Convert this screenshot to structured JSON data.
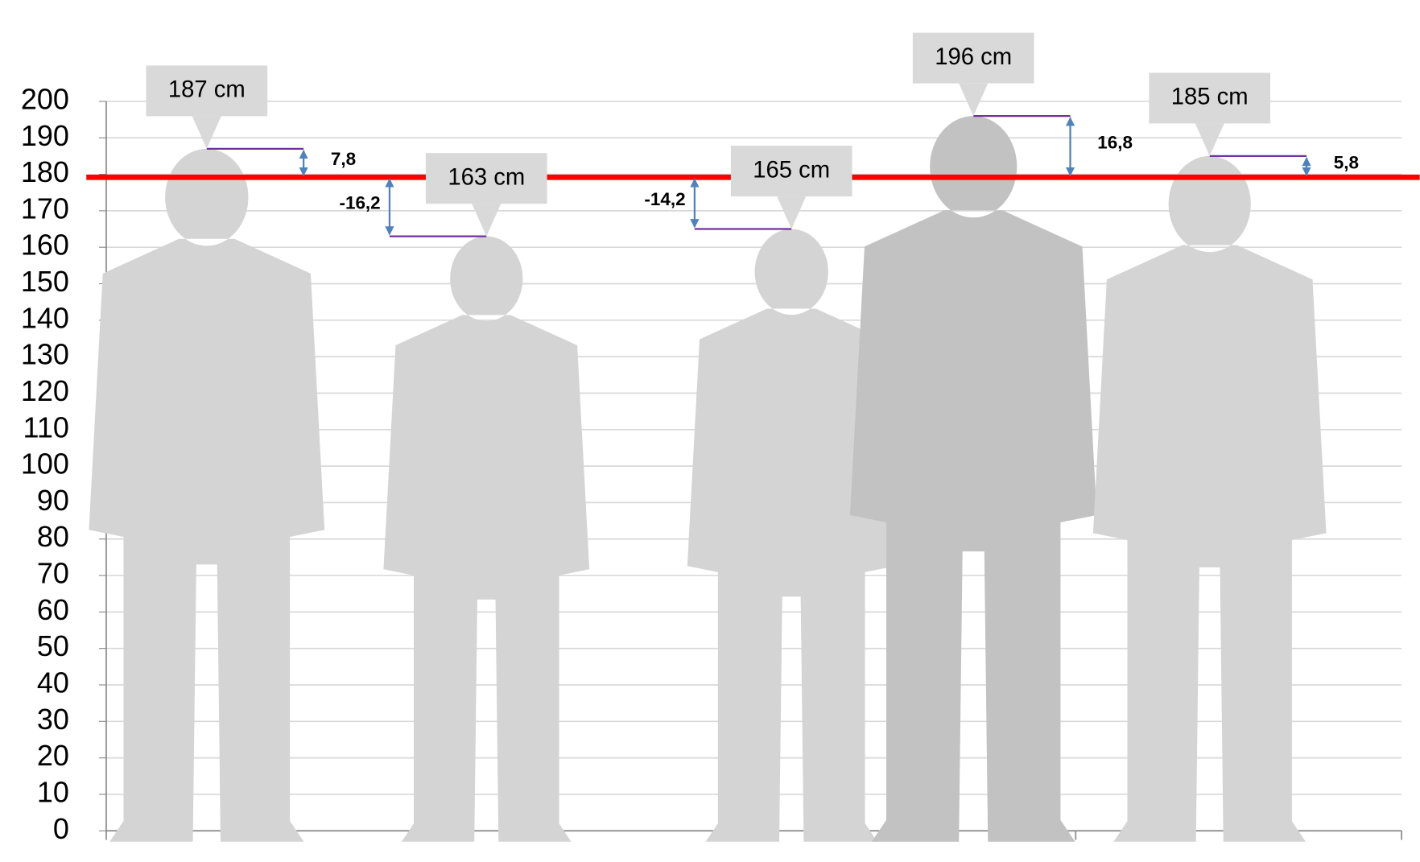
{
  "chart_data": {
    "type": "silhouette",
    "values": [
      187,
      163,
      165,
      196,
      185
    ],
    "value_labels": [
      "187 cm",
      "163 cm",
      "165 cm",
      "196 cm",
      "185 cm"
    ],
    "colors": [
      "#d4d4d4",
      "#d4d4d4",
      "#d4d4d4",
      "#c2c2c2",
      "#d4d4d4"
    ],
    "reference_line": {
      "value": 179.2,
      "color": "#ff0000"
    },
    "differences": {
      "values": [
        7.8,
        -16.2,
        -14.2,
        16.8,
        5.8
      ],
      "value_labels": [
        "7,8",
        "-16,2",
        "-14,2",
        "16,8",
        "5,8"
      ]
    },
    "ylim": [
      0,
      200
    ],
    "yticks": [
      0,
      10,
      20,
      30,
      40,
      50,
      60,
      70,
      80,
      90,
      100,
      110,
      120,
      130,
      140,
      150,
      160,
      170,
      180,
      190,
      200
    ],
    "grid": true
  }
}
